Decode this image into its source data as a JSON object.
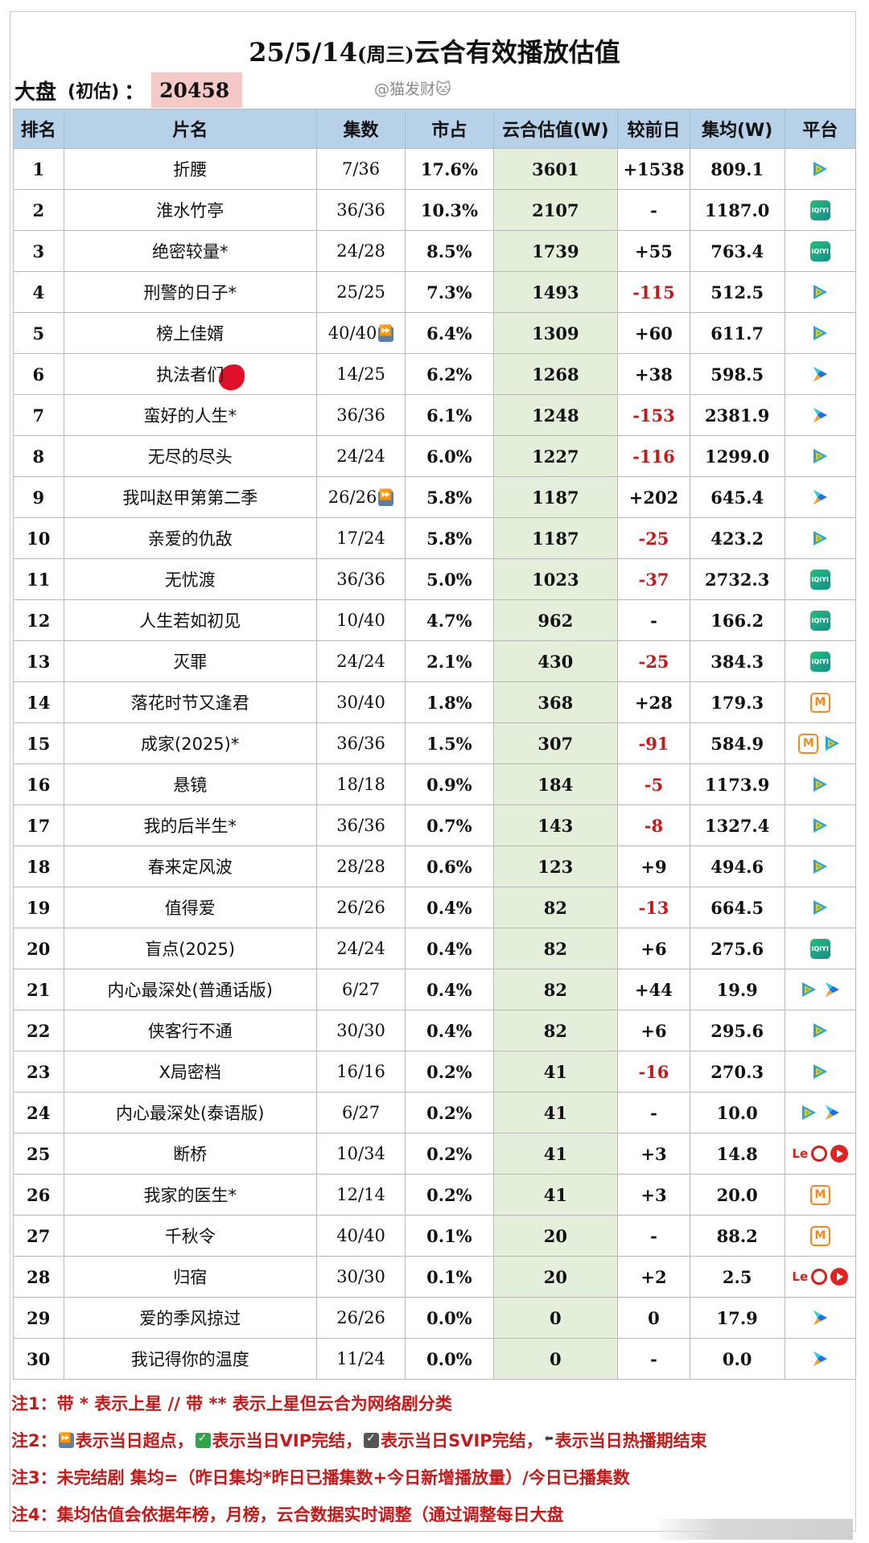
{
  "title": {
    "date": "25/5/14",
    "weekday": "(周三)",
    "text": "云合有效播放估值"
  },
  "summary": {
    "label": "大盘",
    "sub_label": "(初估)",
    "colon": "：",
    "value": "20458"
  },
  "watermark": "@猫发财🐱",
  "table": {
    "headers": [
      "排名",
      "片名",
      "集数",
      "市占",
      "云合估值(W)",
      "较前日",
      "集均(W)",
      "平台"
    ],
    "rows": [
      {
        "rank": "1",
        "name": "折腰",
        "eps": "7/36",
        "share": "17.6%",
        "value": "3601",
        "delta": "+1538",
        "avg": "809.1",
        "platforms": [
          "tencent"
        ]
      },
      {
        "rank": "2",
        "name": "淮水竹亭",
        "eps": "36/36",
        "share": "10.3%",
        "value": "2107",
        "delta": "-",
        "avg": "1187.0",
        "platforms": [
          "iqiyi"
        ]
      },
      {
        "rank": "3",
        "name": "绝密较量*",
        "eps": "24/28",
        "share": "8.5%",
        "value": "1739",
        "delta": "+55",
        "avg": "763.4",
        "platforms": [
          "iqiyi"
        ]
      },
      {
        "rank": "4",
        "name": "刑警的日子*",
        "eps": "25/25",
        "share": "7.3%",
        "value": "1493",
        "delta": "-115",
        "avg": "512.5",
        "platforms": [
          "tencent"
        ]
      },
      {
        "rank": "5",
        "name": "榜上佳婿",
        "eps": "40/40",
        "eps_icon": "fast-forward",
        "share": "6.4%",
        "value": "1309",
        "delta": "+60",
        "avg": "611.7",
        "platforms": [
          "tencent"
        ]
      },
      {
        "rank": "6",
        "name": "执法者们",
        "eps": "14/25",
        "share": "6.2%",
        "value": "1268",
        "delta": "+38",
        "avg": "598.5",
        "platforms": [
          "youku"
        ]
      },
      {
        "rank": "7",
        "name": "蛮好的人生*",
        "eps": "36/36",
        "share": "6.1%",
        "value": "1248",
        "delta": "-153",
        "avg": "2381.9",
        "platforms": [
          "youku"
        ]
      },
      {
        "rank": "8",
        "name": "无尽的尽头",
        "eps": "24/24",
        "share": "6.0%",
        "value": "1227",
        "delta": "-116",
        "avg": "1299.0",
        "platforms": [
          "tencent"
        ]
      },
      {
        "rank": "9",
        "name": "我叫赵甲第第二季",
        "eps": "26/26",
        "eps_icon": "fast-forward",
        "share": "5.8%",
        "value": "1187",
        "delta": "+202",
        "avg": "645.4",
        "platforms": [
          "youku"
        ]
      },
      {
        "rank": "10",
        "name": "亲爱的仇敌",
        "eps": "17/24",
        "share": "5.8%",
        "value": "1187",
        "delta": "-25",
        "avg": "423.2",
        "platforms": [
          "tencent"
        ]
      },
      {
        "rank": "11",
        "name": "无忧渡",
        "eps": "36/36",
        "share": "5.0%",
        "value": "1023",
        "delta": "-37",
        "avg": "2732.3",
        "platforms": [
          "iqiyi"
        ]
      },
      {
        "rank": "12",
        "name": "人生若如初见",
        "eps": "10/40",
        "share": "4.7%",
        "value": "962",
        "delta": "-",
        "avg": "166.2",
        "platforms": [
          "iqiyi"
        ]
      },
      {
        "rank": "13",
        "name": "灭罪",
        "eps": "24/24",
        "share": "2.1%",
        "value": "430",
        "delta": "-25",
        "avg": "384.3",
        "platforms": [
          "iqiyi"
        ]
      },
      {
        "rank": "14",
        "name": "落花时节又逢君",
        "eps": "30/40",
        "share": "1.8%",
        "value": "368",
        "delta": "+28",
        "avg": "179.3",
        "platforms": [
          "mango"
        ]
      },
      {
        "rank": "15",
        "name": "成家(2025)*",
        "eps": "36/36",
        "share": "1.5%",
        "value": "307",
        "delta": "-91",
        "avg": "584.9",
        "platforms": [
          "mango",
          "tencent"
        ]
      },
      {
        "rank": "16",
        "name": "悬镜",
        "eps": "18/18",
        "share": "0.9%",
        "value": "184",
        "delta": "-5",
        "avg": "1173.9",
        "platforms": [
          "tencent"
        ]
      },
      {
        "rank": "17",
        "name": "我的后半生*",
        "eps": "36/36",
        "share": "0.7%",
        "value": "143",
        "delta": "-8",
        "avg": "1327.4",
        "platforms": [
          "tencent"
        ]
      },
      {
        "rank": "18",
        "name": "春来定风波",
        "eps": "28/28",
        "share": "0.6%",
        "value": "123",
        "delta": "+9",
        "avg": "494.6",
        "platforms": [
          "tencent"
        ]
      },
      {
        "rank": "19",
        "name": "值得爱",
        "eps": "26/26",
        "share": "0.4%",
        "value": "82",
        "delta": "-13",
        "avg": "664.5",
        "platforms": [
          "tencent"
        ]
      },
      {
        "rank": "20",
        "name": "盲点(2025)",
        "eps": "24/24",
        "share": "0.4%",
        "value": "82",
        "delta": "+6",
        "avg": "275.6",
        "platforms": [
          "iqiyi"
        ]
      },
      {
        "rank": "21",
        "name": "内心最深处(普通话版)",
        "eps": "6/27",
        "share": "0.4%",
        "value": "82",
        "delta": "+44",
        "avg": "19.9",
        "platforms": [
          "tencent",
          "youku"
        ]
      },
      {
        "rank": "22",
        "name": "侠客行不通",
        "eps": "30/30",
        "share": "0.4%",
        "value": "82",
        "delta": "+6",
        "avg": "295.6",
        "platforms": [
          "tencent"
        ]
      },
      {
        "rank": "23",
        "name": "X局密档",
        "eps": "16/16",
        "share": "0.2%",
        "value": "41",
        "delta": "-16",
        "avg": "270.3",
        "platforms": [
          "tencent"
        ]
      },
      {
        "rank": "24",
        "name": "内心最深处(泰语版)",
        "eps": "6/27",
        "share": "0.2%",
        "value": "41",
        "delta": "-",
        "avg": "10.0",
        "platforms": [
          "tencent",
          "youku"
        ]
      },
      {
        "rank": "25",
        "name": "断桥",
        "eps": "10/34",
        "share": "0.2%",
        "value": "41",
        "delta": "+3",
        "avg": "14.8",
        "platforms": [
          "le",
          "circle",
          "circle-fill"
        ]
      },
      {
        "rank": "26",
        "name": "我家的医生*",
        "eps": "12/14",
        "share": "0.2%",
        "value": "41",
        "delta": "+3",
        "avg": "20.0",
        "platforms": [
          "mango"
        ]
      },
      {
        "rank": "27",
        "name": "千秋令",
        "eps": "40/40",
        "share": "0.1%",
        "value": "20",
        "delta": "-",
        "avg": "88.2",
        "platforms": [
          "mango"
        ]
      },
      {
        "rank": "28",
        "name": "归宿",
        "eps": "30/30",
        "share": "0.1%",
        "value": "20",
        "delta": "+2",
        "avg": "2.5",
        "platforms": [
          "le",
          "circle",
          "circle-fill"
        ]
      },
      {
        "rank": "29",
        "name": "爱的季风掠过",
        "eps": "26/26",
        "share": "0.0%",
        "value": "0",
        "delta": "0",
        "avg": "17.9",
        "platforms": [
          "youku"
        ]
      },
      {
        "rank": "30",
        "name": "我记得你的温度",
        "eps": "11/24",
        "share": "0.0%",
        "value": "0",
        "delta": "-",
        "avg": "0.0",
        "platforms": [
          "youku"
        ]
      }
    ]
  },
  "notes": {
    "n1": "注1：带 * 表示上星 // 带 ** 表示上星但云合为网络剧分类",
    "n2_a": "注2：",
    "n2_b": "表示当日超点，",
    "n2_c": "表示当日VIP完结，",
    "n2_d": "表示当日SVIP完结，",
    "n2_e": "表示当日热播期结束",
    "n3": "注3：未完结剧 集均=（昨日集均*昨日已播集数+今日新增播放量）/今日已播集数",
    "n4": "注4：集均估值会依据年榜，月榜，云合数据实时调整（通过调整每日大盘"
  },
  "colors": {
    "header_bg": "#b7d2e8",
    "value_col_bg": "#e4efdb",
    "negative": "#c41a1a",
    "summary_bg": "#f6c9c9",
    "notes_text": "#c41a1a"
  }
}
